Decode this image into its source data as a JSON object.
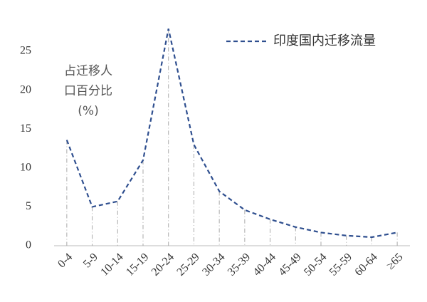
{
  "chart_data": {
    "type": "line",
    "ylabel": [
      "占迁移人",
      "口百分比",
      "(%)"
    ],
    "categories": [
      "0-4",
      "5-9",
      "10-14",
      "15-19",
      "20-24",
      "25-29",
      "30-34",
      "35-39",
      "40-44",
      "45-49",
      "50-54",
      "55-59",
      "60-64",
      "≥65"
    ],
    "series": [
      {
        "name": "印度国内迁移流量",
        "color": "#2f4f8f",
        "values": [
          13.6,
          5.0,
          5.7,
          11.0,
          27.9,
          13.0,
          7.0,
          4.6,
          3.4,
          2.4,
          1.7,
          1.3,
          1.1,
          1.7
        ]
      }
    ],
    "ylim": [
      0,
      28.5
    ],
    "yticks": [
      0,
      5,
      10,
      15,
      20,
      25
    ],
    "grid": false,
    "drop_lines": true,
    "legend": "upper right"
  }
}
